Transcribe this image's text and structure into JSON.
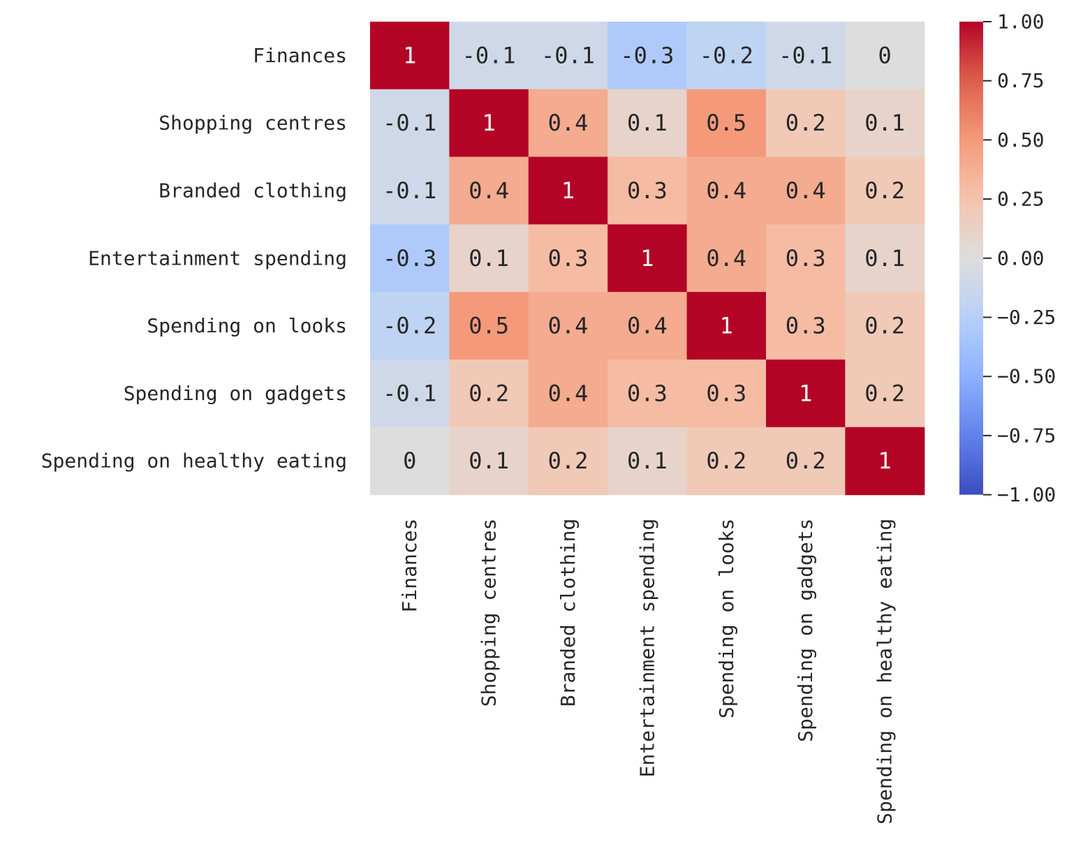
{
  "chart_data": {
    "type": "heatmap",
    "title": "",
    "xlabel": "",
    "ylabel": "",
    "colormap": "coolwarm",
    "vmin": -1,
    "vmax": 1,
    "rows": [
      "Finances",
      "Shopping centres",
      "Branded clothing",
      "Entertainment spending",
      "Spending on looks",
      "Spending on gadgets",
      "Spending on healthy eating"
    ],
    "columns": [
      "Finances",
      "Shopping centres",
      "Branded clothing",
      "Entertainment spending",
      "Spending on looks",
      "Spending on gadgets",
      "Spending on healthy eating"
    ],
    "values": [
      [
        1,
        -0.1,
        -0.1,
        -0.3,
        -0.2,
        -0.1,
        0
      ],
      [
        -0.1,
        1,
        0.4,
        0.1,
        0.5,
        0.2,
        0.1
      ],
      [
        -0.1,
        0.4,
        1,
        0.3,
        0.4,
        0.4,
        0.2
      ],
      [
        -0.3,
        0.1,
        0.3,
        1,
        0.4,
        0.3,
        0.1
      ],
      [
        -0.2,
        0.5,
        0.4,
        0.4,
        1,
        0.3,
        0.2
      ],
      [
        -0.1,
        0.2,
        0.4,
        0.3,
        0.3,
        1,
        0.2
      ],
      [
        0,
        0.1,
        0.2,
        0.1,
        0.2,
        0.2,
        1
      ]
    ],
    "cell_labels": [
      [
        "1",
        "-0.1",
        "-0.1",
        "-0.3",
        "-0.2",
        "-0.1",
        "0"
      ],
      [
        "-0.1",
        "1",
        "0.4",
        "0.1",
        "0.5",
        "0.2",
        "0.1"
      ],
      [
        "-0.1",
        "0.4",
        "1",
        "0.3",
        "0.4",
        "0.4",
        "0.2"
      ],
      [
        "-0.3",
        "0.1",
        "0.3",
        "1",
        "0.4",
        "0.3",
        "0.1"
      ],
      [
        "-0.2",
        "0.5",
        "0.4",
        "0.4",
        "1",
        "0.3",
        "0.2"
      ],
      [
        "-0.1",
        "0.2",
        "0.4",
        "0.3",
        "0.3",
        "1",
        "0.2"
      ],
      [
        "0",
        "0.1",
        "0.2",
        "0.1",
        "0.2",
        "0.2",
        "1"
      ]
    ],
    "colorbar": {
      "ticks": [
        1.0,
        0.75,
        0.5,
        0.25,
        0.0,
        -0.25,
        -0.5,
        -0.75,
        -1.0
      ],
      "tick_labels": [
        "1.00",
        "0.75",
        "0.50",
        "0.25",
        "0.00",
        "−0.25",
        "−0.50",
        "−0.75",
        "−1.00"
      ]
    },
    "grid": false,
    "legend": "colorbar-right"
  }
}
